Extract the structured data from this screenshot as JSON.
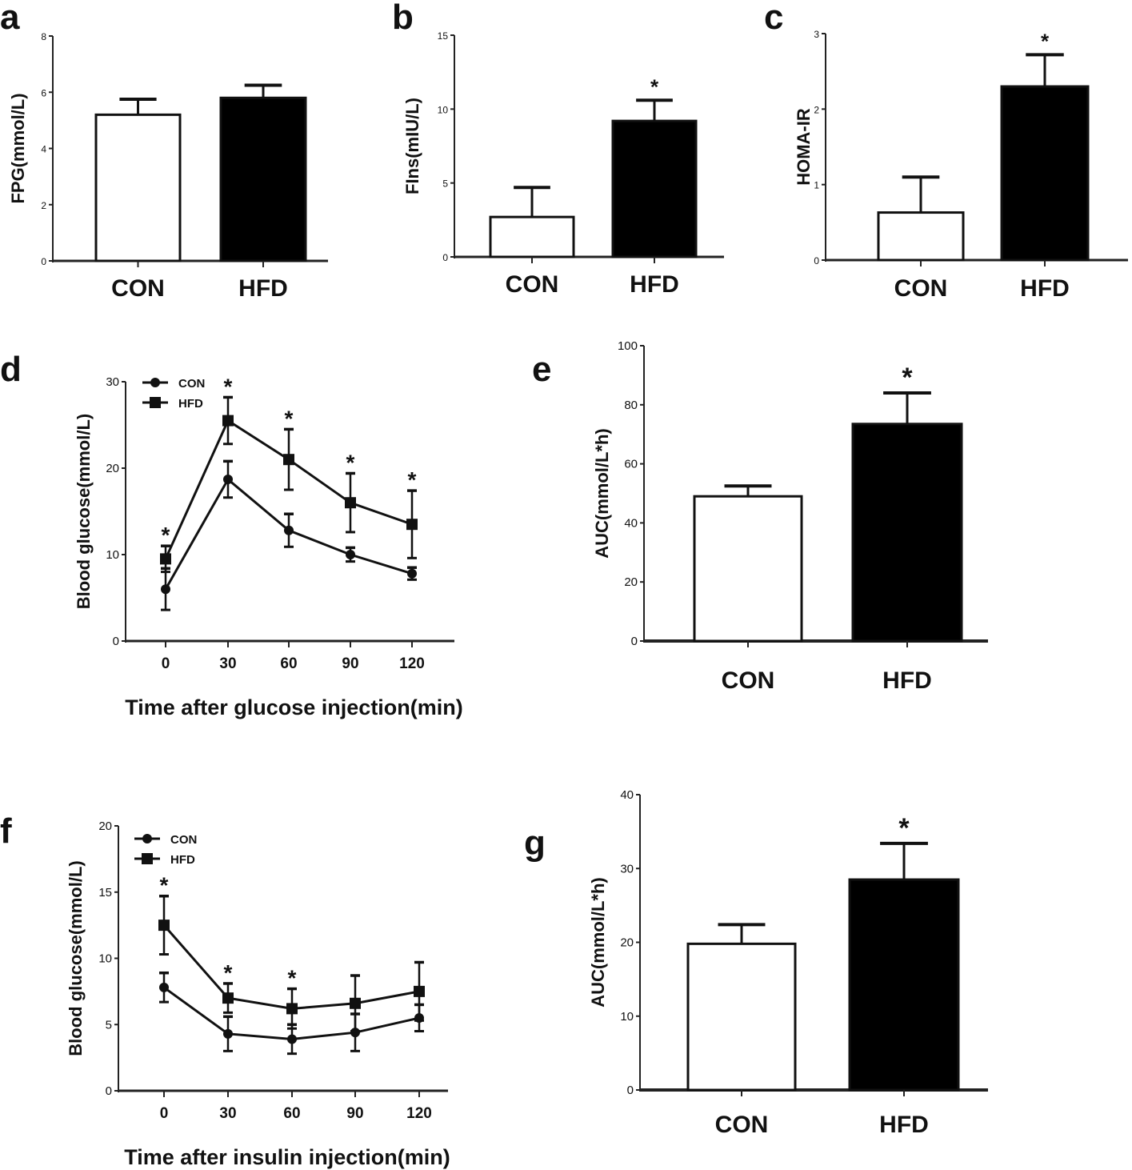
{
  "chart_data": [
    {
      "panel": "a",
      "type": "bar",
      "ylabel": "FPG(mmol/L)",
      "categories": [
        "CON",
        "HFD"
      ],
      "values": [
        5.2,
        5.8
      ],
      "errors": [
        0.55,
        0.45
      ],
      "ylim": [
        0,
        8
      ],
      "yticks": [
        0,
        2,
        4,
        6,
        8
      ],
      "significance": [
        "",
        ""
      ],
      "fills": [
        "#ffffff",
        "#000000"
      ]
    },
    {
      "panel": "b",
      "type": "bar",
      "ylabel": "FIns(mIU/L)",
      "categories": [
        "CON",
        "HFD"
      ],
      "values": [
        2.7,
        9.2
      ],
      "errors": [
        2.0,
        1.4
      ],
      "ylim": [
        0,
        15
      ],
      "yticks": [
        0,
        5,
        10,
        15
      ],
      "significance": [
        "",
        "*"
      ],
      "fills": [
        "#ffffff",
        "#000000"
      ]
    },
    {
      "panel": "c",
      "type": "bar",
      "ylabel": "HOMA-IR",
      "categories": [
        "CON",
        "HFD"
      ],
      "values": [
        0.63,
        2.3
      ],
      "errors": [
        0.47,
        0.42
      ],
      "ylim": [
        0,
        3
      ],
      "yticks": [
        0,
        1,
        2,
        3
      ],
      "significance": [
        "",
        "*"
      ],
      "fills": [
        "#ffffff",
        "#000000"
      ]
    },
    {
      "panel": "d",
      "type": "line",
      "ylabel": "Blood glucose(mmol/L)",
      "xlabel": "Time after glucose injection(min)",
      "x": [
        0,
        30,
        60,
        90,
        120
      ],
      "ylim": [
        0,
        30
      ],
      "yticks": [
        0,
        10,
        20,
        30
      ],
      "series": [
        {
          "name": "CON",
          "marker": "circle",
          "values": [
            6.0,
            18.7,
            12.8,
            10.0,
            7.8
          ],
          "errors": [
            2.4,
            2.1,
            1.9,
            0.8,
            0.7
          ]
        },
        {
          "name": "HFD",
          "marker": "square",
          "values": [
            9.5,
            25.5,
            21.0,
            16.0,
            13.5
          ],
          "errors": [
            1.5,
            2.7,
            3.5,
            3.4,
            3.9
          ]
        }
      ],
      "significance": [
        "*",
        "*",
        "*",
        "*",
        "*"
      ],
      "legend": "top-left"
    },
    {
      "panel": "e",
      "type": "bar",
      "ylabel": "AUC(mmol/L*h)",
      "categories": [
        "CON",
        "HFD"
      ],
      "values": [
        49,
        73.5
      ],
      "errors": [
        3.5,
        10.5
      ],
      "ylim": [
        0,
        100
      ],
      "yticks": [
        0,
        20,
        40,
        60,
        80,
        100
      ],
      "significance": [
        "",
        "*"
      ],
      "fills": [
        "#ffffff",
        "#000000"
      ]
    },
    {
      "panel": "f",
      "type": "line",
      "ylabel": "Blood glucose(mmol/L)",
      "xlabel": "Time after insulin injection(min)",
      "x": [
        0,
        30,
        60,
        90,
        120
      ],
      "ylim": [
        0,
        20
      ],
      "yticks": [
        0,
        5,
        10,
        15,
        20
      ],
      "series": [
        {
          "name": "CON",
          "marker": "circle",
          "values": [
            7.8,
            4.3,
            3.9,
            4.4,
            5.5
          ],
          "errors": [
            1.1,
            1.3,
            1.1,
            1.4,
            1.0
          ]
        },
        {
          "name": "HFD",
          "marker": "square",
          "values": [
            12.5,
            7.0,
            6.2,
            6.6,
            7.5
          ],
          "errors": [
            2.2,
            1.1,
            1.5,
            2.1,
            2.2
          ]
        }
      ],
      "significance": [
        "*",
        "*",
        "*",
        "",
        ""
      ],
      "legend": "top-left"
    },
    {
      "panel": "g",
      "type": "bar",
      "ylabel": "AUC(mmol/L*h)",
      "categories": [
        "CON",
        "HFD"
      ],
      "values": [
        19.8,
        28.5
      ],
      "errors": [
        2.6,
        4.9
      ],
      "ylim": [
        0,
        40
      ],
      "yticks": [
        0,
        10,
        20,
        30,
        40
      ],
      "significance": [
        "",
        "*"
      ],
      "fills": [
        "#ffffff",
        "#000000"
      ]
    }
  ]
}
